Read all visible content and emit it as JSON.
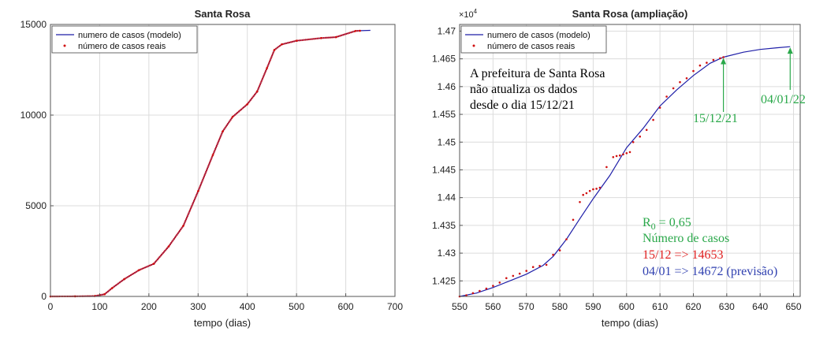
{
  "chart_data": [
    {
      "type": "line",
      "title": "Santa Rosa",
      "xlabel": "tempo (dias)",
      "ylabel": "",
      "xlim": [
        0,
        700
      ],
      "ylim": [
        0,
        15000
      ],
      "xticks": [
        "0",
        "100",
        "200",
        "300",
        "400",
        "500",
        "600",
        "700"
      ],
      "yticks": [
        "0",
        "5000",
        "10000",
        "15000"
      ],
      "grid": true,
      "legend_position": "top-left",
      "legend": [
        "numero de casos (modelo)",
        "número de casos reais"
      ],
      "series": [
        {
          "name": "numero de casos (modelo)",
          "style": "line",
          "color": "#1f1fa8",
          "x": [
            0,
            50,
            90,
            110,
            125,
            150,
            180,
            210,
            240,
            270,
            300,
            330,
            350,
            370,
            400,
            420,
            440,
            455,
            470,
            500,
            550,
            580,
            620,
            650
          ],
          "y": [
            0,
            5,
            20,
            120,
            450,
            950,
            1450,
            1800,
            2750,
            3900,
            5800,
            7800,
            9100,
            9900,
            10600,
            11300,
            12600,
            13600,
            13900,
            14100,
            14250,
            14300,
            14650,
            14672
          ]
        },
        {
          "name": "número de casos reais",
          "style": "points",
          "color": "#d01010",
          "x": [
            0,
            50,
            90,
            110,
            125,
            150,
            180,
            210,
            240,
            270,
            300,
            330,
            350,
            370,
            400,
            420,
            440,
            455,
            470,
            500,
            550,
            580,
            620,
            629
          ],
          "y": [
            0,
            5,
            20,
            120,
            450,
            950,
            1450,
            1800,
            2750,
            3900,
            5800,
            7800,
            9100,
            9900,
            10600,
            11300,
            12600,
            13600,
            13900,
            14100,
            14250,
            14300,
            14640,
            14653
          ]
        }
      ]
    },
    {
      "type": "line",
      "title": "Santa Rosa (ampliação)",
      "xlabel": "tempo (dias)",
      "ylabel": "",
      "xlim": [
        550,
        652
      ],
      "ylim": [
        14222,
        14712
      ],
      "y_exponent": "×10",
      "y_exponent_power": "4",
      "xticks": [
        "550",
        "560",
        "570",
        "580",
        "590",
        "600",
        "610",
        "620",
        "630",
        "640",
        "650"
      ],
      "yticks": [
        "1.425",
        "1.43",
        "1.435",
        "1.44",
        "1.445",
        "1.45",
        "1.455",
        "1.46",
        "1.465",
        "1.47"
      ],
      "grid": true,
      "legend_position": "top-left",
      "legend": [
        "numero de casos (modelo)",
        "número de casos reais"
      ],
      "series": [
        {
          "name": "numero de casos (modelo)",
          "style": "line",
          "color": "#1f1fa8",
          "x": [
            550,
            555,
            560,
            565,
            570,
            575,
            578,
            582,
            586,
            590,
            595,
            600,
            605,
            610,
            615,
            620,
            625,
            629,
            635,
            640,
            645,
            649
          ],
          "y": [
            14222,
            14228,
            14238,
            14250,
            14262,
            14278,
            14294,
            14325,
            14362,
            14398,
            14440,
            14490,
            14525,
            14565,
            14594,
            14620,
            14642,
            14653,
            14662,
            14667,
            14670,
            14672
          ]
        },
        {
          "name": "número de casos reais",
          "style": "points",
          "color": "#d01010",
          "x": [
            550,
            552,
            554,
            556,
            558,
            560,
            562,
            564,
            566,
            568,
            570,
            572,
            574,
            576,
            578,
            580,
            582,
            584,
            586,
            587,
            588,
            589,
            590,
            591,
            592,
            594,
            596,
            597,
            598,
            599,
            600,
            601,
            602,
            604,
            606,
            608,
            610,
            612,
            614,
            616,
            618,
            620,
            622,
            624,
            626,
            628,
            629
          ],
          "y": [
            14222,
            14224,
            14228,
            14232,
            14236,
            14241,
            14247,
            14255,
            14259,
            14263,
            14268,
            14275,
            14277,
            14279,
            14297,
            14305,
            14325,
            14360,
            14392,
            14405,
            14408,
            14412,
            14415,
            14416,
            14418,
            14455,
            14473,
            14475,
            14476,
            14478,
            14480,
            14482,
            14500,
            14510,
            14522,
            14540,
            14562,
            14582,
            14597,
            14608,
            14615,
            14628,
            14638,
            14643,
            14648,
            14651,
            14653
          ]
        }
      ],
      "annotations": [
        {
          "text": "A prefeitura de Santa Rosa",
          "color": "#000000"
        },
        {
          "text": "não atualiza os dados",
          "color": "#000000"
        },
        {
          "text": "desde o dia 15/12/21",
          "color": "#000000"
        },
        {
          "text": "15/12/21",
          "color": "#2aa84a",
          "arrow_to_x": 629,
          "arrow_to_y": 14653
        },
        {
          "text": "04/01/22",
          "color": "#2aa84a",
          "arrow_to_x": 649,
          "arrow_to_y": 14672
        },
        {
          "text_base": "R",
          "text_sub": "0",
          "text_rest": " = 0,65",
          "color": "#2aa84a"
        },
        {
          "text": "Número de casos",
          "color": "#2aa84a"
        },
        {
          "text": "15/12 => 14653",
          "color": "#e02020"
        },
        {
          "text": "04/01 => 14672 (previsão)",
          "color": "#3040b0"
        }
      ]
    }
  ]
}
